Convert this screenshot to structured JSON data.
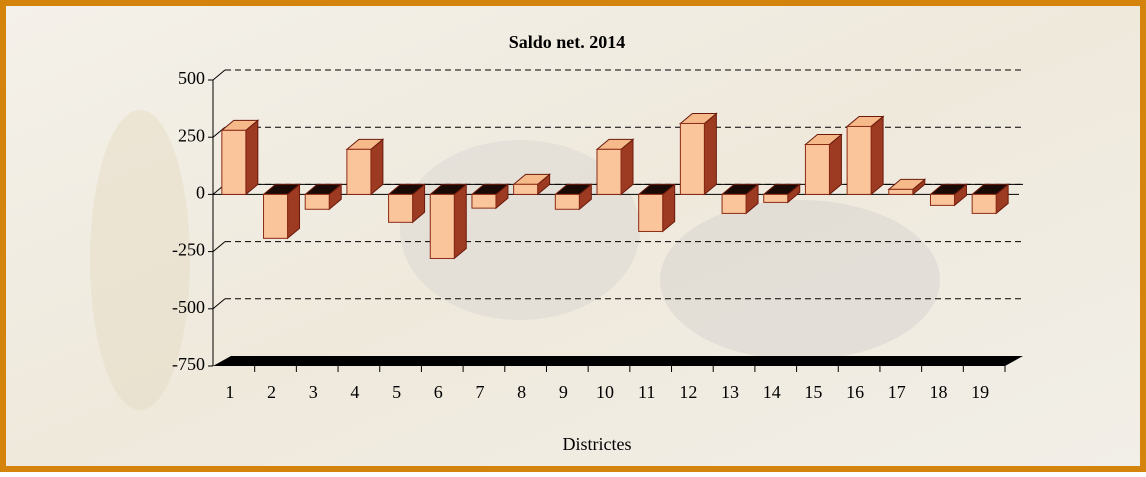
{
  "chart_data": {
    "type": "bar",
    "title": "Saldo net. 2014",
    "x_label": "Districtes",
    "categories": [
      "1",
      "2",
      "3",
      "4",
      "5",
      "6",
      "7",
      "8",
      "9",
      "10",
      "11",
      "12",
      "13",
      "14",
      "15",
      "16",
      "17",
      "18",
      "19"
    ],
    "values": [
      280,
      -192,
      -65,
      197,
      -122,
      -280,
      -60,
      44,
      -65,
      197,
      -162,
      310,
      -83,
      -35,
      218,
      297,
      22,
      -48,
      -83
    ],
    "color": "#fbc59b",
    "ylim": [
      -750,
      500
    ],
    "yticks": [
      -750,
      -500,
      -250,
      0,
      250,
      500
    ],
    "grid": true
  }
}
